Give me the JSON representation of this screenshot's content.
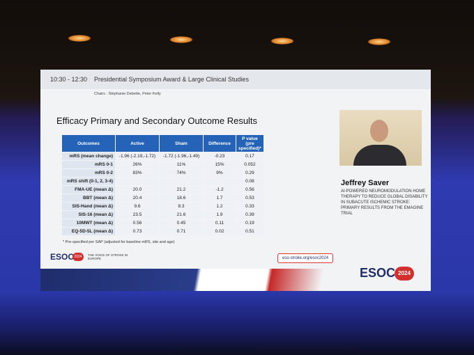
{
  "session": {
    "time": "10:30 - 12:30",
    "title": "Presidential Symposium Award & Large Clinical Studies",
    "chairs": "Chairs : Stéphanie Debette, Peter Kelly"
  },
  "slide": {
    "title": "Efficacy Primary and Secondary Outcome Results",
    "table": {
      "header": [
        "Outcomes",
        "Active",
        "Sham",
        "Difference",
        "P value (pre specified)*"
      ],
      "rows": [
        [
          "mRS (mean change)",
          "-1.96 (-2.19,-1.72)",
          "-1.72 (-1.96,-1.49)",
          "-0.23",
          "0.17"
        ],
        [
          "mRS 0-1",
          "26%",
          "11%",
          "15%",
          "0.052"
        ],
        [
          "mRS 0-2",
          "83%",
          "74%",
          "9%",
          "0.29"
        ],
        [
          "mRS shift (0-1, 2, 3-4)",
          null,
          null,
          null,
          "0.08"
        ],
        [
          "FMA-UE (mean Δ)",
          "20.0",
          "21.2",
          "-1.2",
          "0.56"
        ],
        [
          "BBT (mean Δ)",
          "20.4",
          "18.6",
          "1.7",
          "0.53"
        ],
        [
          "SIS-Hand (mean Δ)",
          "9.6",
          "8.3",
          "1.2",
          "0.33"
        ],
        [
          "SIS-16 (mean Δ)",
          "23.5",
          "21.6",
          "1.9",
          "0.39"
        ],
        [
          "10MWT (mean Δ)",
          "0.56",
          "0.45",
          "0.11",
          "0.19"
        ],
        [
          "EQ-5D-5L (mean Δ)",
          "0.73",
          "0.71",
          "0.02",
          "0.51"
        ]
      ]
    },
    "footnote": "* Pre-specified per SAP (adjusted for baseline mRS, site and age)"
  },
  "speaker": {
    "name": "Jeffrey Saver",
    "talk": "AI-POWERED NEUROMODULATION HOME THERAPY TO REDUCE GLOBAL DISABILITY IN SUBACUTE ISCHEMIC STROKE: PRIMARY RESULTS FROM THE EMAGINE TRIAL"
  },
  "footer": {
    "logo": "ESOC",
    "year": "2024",
    "tagline": "THE VOICE OF STROKE IN EUROPE",
    "url": "eso-stroke.org/esoc2024",
    "big_logo": "ESOC",
    "big_year": "2024"
  }
}
